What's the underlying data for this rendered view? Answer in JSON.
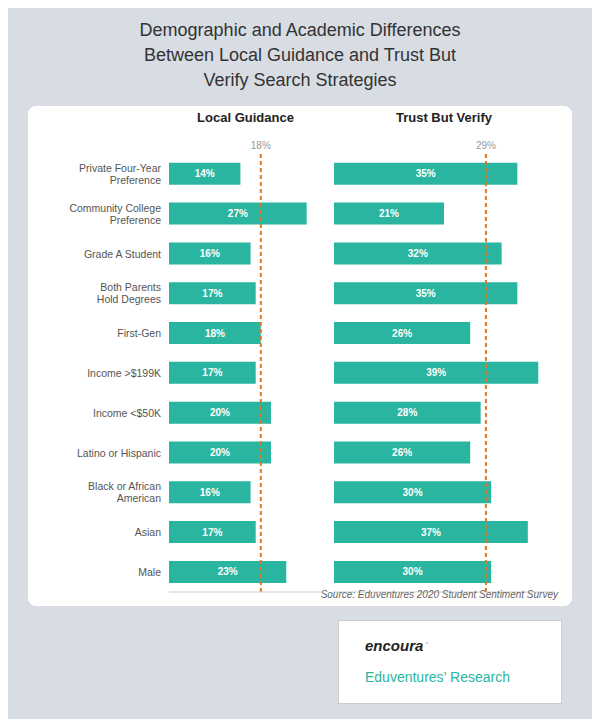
{
  "title": "Demographic and Academic Differences\nBetween Local Guidance and Trust But\nVerify Search Strategies",
  "annotations": [
    {
      "text": "Source: Eduventures 2020 Student Sentiment Survey",
      "color": "#666666"
    },
    {
      "text": "encoura",
      "color": "#222222"
    },
    {
      "text": "´",
      "color": "#888888"
    },
    {
      "text": "Eduventures’ Research",
      "color": "#2ab5a0"
    }
  ],
  "chart_data": [
    {
      "type": "bar",
      "orientation": "horizontal",
      "title": "Local Guidance",
      "categories": [
        "Private Four-Year\nPreference",
        "Community College\nPreference",
        "Grade A Student",
        "Both Parents\nHold Degrees",
        "First-Gen",
        "Income >$199K",
        "Income <$50K",
        "Latino or Hispanic",
        "Black or African\nAmerican",
        "Asian",
        "Male"
      ],
      "values": [
        14,
        27,
        16,
        17,
        18,
        17,
        20,
        20,
        16,
        17,
        23
      ],
      "value_labels": [
        "14%",
        "27%",
        "16%",
        "17%",
        "18%",
        "17%",
        "20%",
        "20%",
        "16%",
        "17%",
        "23%"
      ],
      "data_labels": true,
      "color": "#2ab5a0",
      "xlim": [
        0,
        30
      ],
      "grid": false,
      "tick_labels": "y",
      "annotations": [
        {
          "text": "18%",
          "x": 18,
          "color": "#e07820"
        }
      ]
    },
    {
      "type": "bar",
      "orientation": "horizontal",
      "title": "Trust But Verify",
      "categories": [
        "Private Four-Year\nPreference",
        "Community College\nPreference",
        "Grade A Student",
        "Both Parents\nHold Degrees",
        "First-Gen",
        "Income >$199K",
        "Income <$50K",
        "Latino or Hispanic",
        "Black or African\nAmerican",
        "Asian",
        "Male"
      ],
      "values": [
        35,
        21,
        32,
        35,
        26,
        39,
        28,
        26,
        30,
        37,
        30
      ],
      "value_labels": [
        "35%",
        "21%",
        "32%",
        "35%",
        "26%",
        "39%",
        "28%",
        "26%",
        "30%",
        "37%",
        "30%"
      ],
      "data_labels": true,
      "color": "#2ab5a0",
      "xlim": [
        0,
        42
      ],
      "grid": false,
      "tick_labels": false,
      "annotations": [
        {
          "text": "29%",
          "x": 29,
          "color": "#e07820"
        }
      ]
    }
  ]
}
